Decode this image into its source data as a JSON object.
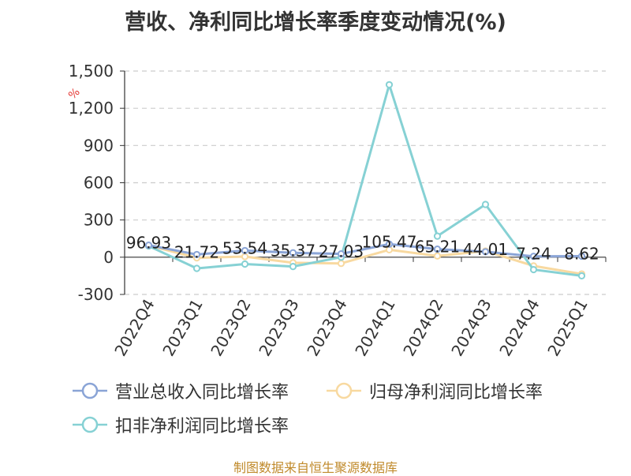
{
  "chart_data": {
    "type": "line",
    "title": "营收、净利同比增长率季度变动情况(%)",
    "unit_label": "%",
    "categories": [
      "2022Q4",
      "2023Q1",
      "2023Q2",
      "2023Q3",
      "2023Q4",
      "2024Q1",
      "2024Q2",
      "2024Q3",
      "2024Q4",
      "2025Q1"
    ],
    "ylim": [
      -300,
      1500
    ],
    "yticks": [
      -300,
      0,
      300,
      600,
      900,
      1200,
      1500
    ],
    "ytick_labels": [
      "-300",
      "0",
      "300",
      "600",
      "900",
      "1,200",
      "1,500"
    ],
    "grid": true,
    "legend_position": "bottom",
    "series": [
      {
        "name": "营业总收入同比增长率",
        "color": "#8aa4d6",
        "values": [
          96.93,
          21.72,
          53.54,
          35.37,
          27.03,
          105.47,
          65.21,
          44.01,
          7.24,
          8.62
        ],
        "labels": [
          "96.93",
          "21.72",
          "53.54",
          "35.37",
          "27.03",
          "105.47",
          "65.21",
          "44.01",
          "7.24",
          "8.62"
        ]
      },
      {
        "name": "归母净利润同比增长率",
        "color": "#f8d9a0",
        "values": [
          95,
          -5,
          5,
          -45,
          -50,
          60,
          10,
          50,
          -70,
          -135
        ]
      },
      {
        "name": "扣非净利润同比增长率",
        "color": "#86d1d4",
        "values": [
          90,
          -90,
          -55,
          -75,
          0,
          1390,
          170,
          425,
          -100,
          -150
        ]
      }
    ]
  },
  "source_text": "制图数据来自恒生聚源数据库"
}
